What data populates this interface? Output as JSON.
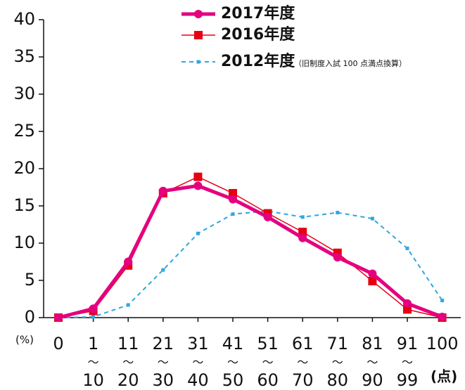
{
  "chart_data": {
    "type": "line",
    "y_unit": "(%)",
    "x_unit": "(点)",
    "legend_note": "（旧制度入試 100 点満点換算）",
    "categories": [
      "0",
      "1〜10",
      "11〜20",
      "21〜30",
      "31〜40",
      "41〜50",
      "51〜60",
      "61〜70",
      "71〜80",
      "81〜90",
      "91〜99",
      "100"
    ],
    "series": [
      {
        "name": "2017年度",
        "color": "#e4007f",
        "values": [
          0,
          1.2,
          7.5,
          17.0,
          17.7,
          15.9,
          13.5,
          10.7,
          8.1,
          5.9,
          1.9,
          0.1
        ]
      },
      {
        "name": "2016年度",
        "color": "#e60012",
        "values": [
          0,
          0.9,
          7.0,
          16.7,
          18.9,
          16.7,
          14.0,
          11.5,
          8.7,
          4.9,
          1.1,
          0
        ]
      },
      {
        "name": "2012年度",
        "color": "#2ea7e0",
        "values": [
          0,
          0.1,
          1.7,
          6.4,
          11.3,
          13.9,
          14.3,
          13.5,
          14.1,
          13.3,
          9.3,
          2.3
        ]
      }
    ],
    "ylim": [
      0,
      40
    ],
    "yticks": [
      0,
      5,
      10,
      15,
      20,
      25,
      30,
      35,
      40
    ]
  }
}
